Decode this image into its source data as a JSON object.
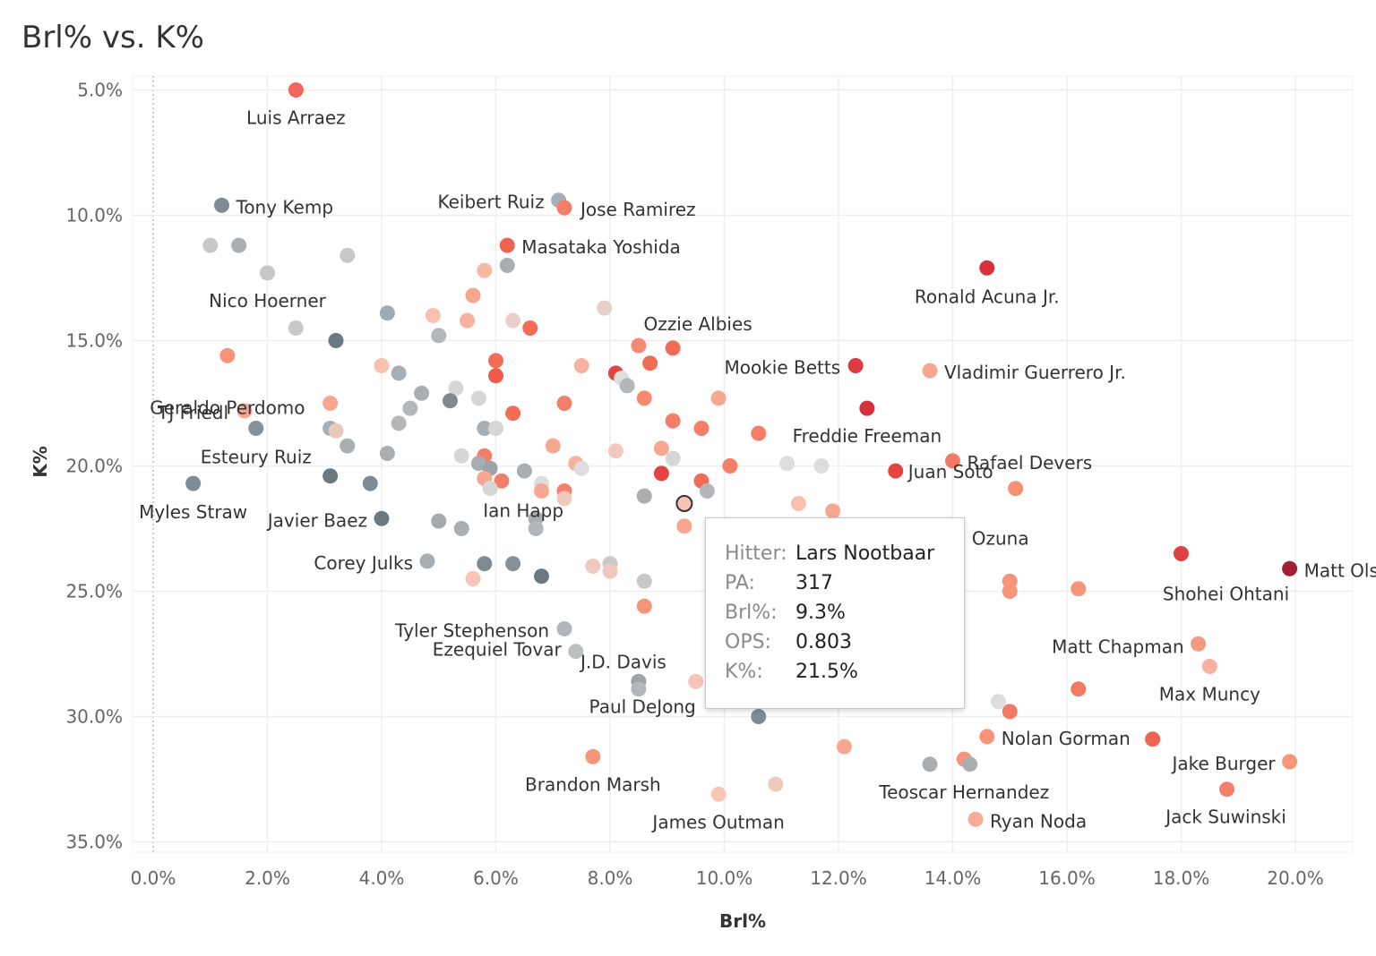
{
  "title": "Brl% vs. K%",
  "chart_data": {
    "type": "scatter",
    "title": "Brl% vs. K%",
    "xlabel": "Brl%",
    "ylabel": "K%",
    "xlim": [
      -0.3,
      20.9
    ],
    "ylim": [
      4.5,
      35.9
    ],
    "y_inverted": true,
    "x_ticks": [
      0,
      2,
      4,
      6,
      8,
      10,
      12,
      14,
      16,
      18,
      20
    ],
    "x_tick_labels": [
      "0.0%",
      "2.0%",
      "4.0%",
      "6.0%",
      "8.0%",
      "10.0%",
      "12.0%",
      "14.0%",
      "16.0%",
      "18.0%",
      "20.0%"
    ],
    "y_ticks": [
      5,
      10,
      15,
      20,
      25,
      30,
      35
    ],
    "y_tick_labels": [
      "5.0%",
      "10.0%",
      "15.0%",
      "20.0%",
      "25.0%",
      "30.0%",
      "35.0%"
    ],
    "points": [
      {
        "name": "Luis Arraez",
        "x": 2.5,
        "y": 5.0,
        "color": "#f0665a"
      },
      {
        "name": "Tony Kemp",
        "x": 1.2,
        "y": 9.6,
        "color": "#7f8b94"
      },
      {
        "name": "Keibert Ruiz",
        "x": 7.1,
        "y": 9.4,
        "color": "#a9aeb2"
      },
      {
        "name": "Jose Ramirez",
        "x": 7.2,
        "y": 9.7,
        "color": "#f47f69"
      },
      {
        "name": "Masataka Yoshida",
        "x": 6.2,
        "y": 11.2,
        "color": "#ee6450"
      },
      {
        "name": "Ronald Acuna Jr.",
        "x": 14.6,
        "y": 12.1,
        "color": "#d7313c"
      },
      {
        "name": "Nico Hoerner",
        "x": 2.0,
        "y": 12.3,
        "color": "#c7c7c7"
      },
      {
        "name": "Ozzie Albies",
        "x": 9.1,
        "y": 15.3,
        "color": "#f26c56"
      },
      {
        "name": "Mookie Betts",
        "x": 12.3,
        "y": 16.0,
        "color": "#dc3b40"
      },
      {
        "name": "Vladimir Guerrero Jr.",
        "x": 13.6,
        "y": 16.2,
        "color": "#f7a78f"
      },
      {
        "name": "Geraldo Perdomo",
        "x": 1.3,
        "y": 15.6,
        "color": "#f7937a"
      },
      {
        "name": "TJ Friedl",
        "x": 1.6,
        "y": 17.8,
        "color": "#f7a78f"
      },
      {
        "name": "Freddie Freeman",
        "x": 12.5,
        "y": 17.7,
        "color": "#d5303c"
      },
      {
        "name": "Esteury Ruiz",
        "x": 1.8,
        "y": 18.5,
        "color": "#879198"
      },
      {
        "name": "Rafael Devers",
        "x": 14.0,
        "y": 19.8,
        "color": "#f27a63"
      },
      {
        "name": "Myles Straw",
        "x": 0.7,
        "y": 20.7,
        "color": "#7f8b94"
      },
      {
        "name": "Juan Soto",
        "x": 13.0,
        "y": 20.2,
        "color": "#e2443f"
      },
      {
        "name": "Javier Baez",
        "x": 4.0,
        "y": 22.1,
        "color": "#6b7880"
      },
      {
        "name": "Ian Happ",
        "x": 6.7,
        "y": 22.1,
        "color": "#a9aeb2"
      },
      {
        "name": "Marcell Ozuna",
        "x": 15.1,
        "y": 20.9,
        "color": "#f6906f"
      },
      {
        "name": "Corey Julks",
        "x": 4.8,
        "y": 23.8,
        "color": "#a9aeb2"
      },
      {
        "name": "Lars Nootbaar",
        "x": 9.3,
        "y": 21.5,
        "color": "#f9c3b2"
      },
      {
        "name": "Shohei Ohtani",
        "x": 18.0,
        "y": 23.5,
        "color": "#de3f41"
      },
      {
        "name": "Matt Olson",
        "x": 19.9,
        "y": 24.1,
        "color": "#a51c35"
      },
      {
        "name": "Tyler Stephenson",
        "x": 7.2,
        "y": 26.5,
        "color": "#b3b7ba"
      },
      {
        "name": "Matt Chapman",
        "x": 18.3,
        "y": 27.1,
        "color": "#f49a80"
      },
      {
        "name": "J.D. Davis",
        "x": 8.5,
        "y": 28.6,
        "color": "#9ba3a9"
      },
      {
        "name": "Ezequiel Tovar",
        "x": 7.4,
        "y": 27.4,
        "color": "#bcc0c3"
      },
      {
        "name": "Max Muncy",
        "x": 18.5,
        "y": 28.0,
        "color": "#f7b19e"
      },
      {
        "name": "Paul DeJong",
        "x": 10.6,
        "y": 30.0,
        "color": "#7f8b94"
      },
      {
        "name": "Nolan Gorman",
        "x": 14.6,
        "y": 30.8,
        "color": "#f6957a"
      },
      {
        "name": "Jake Burger",
        "x": 19.9,
        "y": 31.8,
        "color": "#f6957a"
      },
      {
        "name": "Brandon Marsh",
        "x": 7.7,
        "y": 31.6,
        "color": "#f6957a"
      },
      {
        "name": "Teoscar Hernandez",
        "x": 14.2,
        "y": 31.7,
        "color": "#f6957a"
      },
      {
        "name": "Jack Suwinski",
        "x": 18.8,
        "y": 32.9,
        "color": "#f47f69"
      },
      {
        "name": "James Outman",
        "x": 9.9,
        "y": 33.1,
        "color": "#f7c6b8"
      },
      {
        "name": "Ryan Noda",
        "x": 14.4,
        "y": 34.1,
        "color": "#f8ab95"
      },
      {
        "name": "",
        "x": 1.0,
        "y": 11.2,
        "color": "#c8c8c8"
      },
      {
        "name": "",
        "x": 1.5,
        "y": 11.2,
        "color": "#a9aeb2"
      },
      {
        "name": "",
        "x": 3.4,
        "y": 11.6,
        "color": "#c8c8c8"
      },
      {
        "name": "",
        "x": 6.2,
        "y": 12.0,
        "color": "#a9aeb2"
      },
      {
        "name": "",
        "x": 5.8,
        "y": 12.2,
        "color": "#f7b8a6"
      },
      {
        "name": "",
        "x": 5.6,
        "y": 13.2,
        "color": "#f7a78f"
      },
      {
        "name": "",
        "x": 4.1,
        "y": 13.9,
        "color": "#a3a9ad"
      },
      {
        "name": "",
        "x": 4.9,
        "y": 14.0,
        "color": "#f9c0af"
      },
      {
        "name": "",
        "x": 7.9,
        "y": 13.7,
        "color": "#e8d0c9"
      },
      {
        "name": "",
        "x": 6.3,
        "y": 14.2,
        "color": "#e8d0c9"
      },
      {
        "name": "",
        "x": 5.5,
        "y": 14.2,
        "color": "#f7b19e"
      },
      {
        "name": "",
        "x": 2.5,
        "y": 14.5,
        "color": "#c8c8c8"
      },
      {
        "name": "",
        "x": 6.6,
        "y": 14.5,
        "color": "#f26c56"
      },
      {
        "name": "",
        "x": 5.0,
        "y": 14.8,
        "color": "#b3b7ba"
      },
      {
        "name": "",
        "x": 3.2,
        "y": 15.0,
        "color": "#6b7880"
      },
      {
        "name": "",
        "x": 8.5,
        "y": 15.2,
        "color": "#f58a70"
      },
      {
        "name": "",
        "x": 6.0,
        "y": 15.8,
        "color": "#f26c56"
      },
      {
        "name": "",
        "x": 8.7,
        "y": 15.9,
        "color": "#f26c56"
      },
      {
        "name": "",
        "x": 4.0,
        "y": 16.0,
        "color": "#f9c0af"
      },
      {
        "name": "",
        "x": 7.5,
        "y": 16.0,
        "color": "#f7b19e"
      },
      {
        "name": "",
        "x": 4.3,
        "y": 16.3,
        "color": "#a9aeb2"
      },
      {
        "name": "",
        "x": 6.0,
        "y": 16.4,
        "color": "#ee5b4c"
      },
      {
        "name": "",
        "x": 8.1,
        "y": 16.3,
        "color": "#e2443f"
      },
      {
        "name": "",
        "x": 8.2,
        "y": 16.5,
        "color": "#dddddd"
      },
      {
        "name": "",
        "x": 8.3,
        "y": 16.8,
        "color": "#b3b7ba"
      },
      {
        "name": "",
        "x": 5.3,
        "y": 16.9,
        "color": "#d6d6d6"
      },
      {
        "name": "",
        "x": 4.7,
        "y": 17.1,
        "color": "#a9aeb2"
      },
      {
        "name": "",
        "x": 5.2,
        "y": 17.4,
        "color": "#7f8b94"
      },
      {
        "name": "",
        "x": 5.7,
        "y": 17.3,
        "color": "#d6d6d6"
      },
      {
        "name": "",
        "x": 8.6,
        "y": 17.3,
        "color": "#f58a70"
      },
      {
        "name": "",
        "x": 9.9,
        "y": 17.3,
        "color": "#f7a78f"
      },
      {
        "name": "",
        "x": 3.1,
        "y": 17.5,
        "color": "#f7a78f"
      },
      {
        "name": "",
        "x": 7.2,
        "y": 17.5,
        "color": "#f47f69"
      },
      {
        "name": "",
        "x": 4.5,
        "y": 17.7,
        "color": "#b3b7ba"
      },
      {
        "name": "",
        "x": 6.3,
        "y": 17.9,
        "color": "#f26c56"
      },
      {
        "name": "",
        "x": 9.1,
        "y": 18.2,
        "color": "#f47f69"
      },
      {
        "name": "",
        "x": 4.3,
        "y": 18.3,
        "color": "#b3b7ba"
      },
      {
        "name": "",
        "x": 3.1,
        "y": 18.5,
        "color": "#a9aeb2"
      },
      {
        "name": "",
        "x": 5.8,
        "y": 18.5,
        "color": "#a9aeb2"
      },
      {
        "name": "",
        "x": 6.0,
        "y": 18.5,
        "color": "#d6d6d6"
      },
      {
        "name": "",
        "x": 3.2,
        "y": 18.6,
        "color": "#e8c7bd"
      },
      {
        "name": "",
        "x": 9.6,
        "y": 18.5,
        "color": "#f47f69"
      },
      {
        "name": "",
        "x": 10.6,
        "y": 18.7,
        "color": "#f47f69"
      },
      {
        "name": "",
        "x": 7.0,
        "y": 19.2,
        "color": "#f7a78f"
      },
      {
        "name": "",
        "x": 3.4,
        "y": 19.2,
        "color": "#a9aeb2"
      },
      {
        "name": "",
        "x": 4.1,
        "y": 19.5,
        "color": "#a9aeb2"
      },
      {
        "name": "",
        "x": 8.9,
        "y": 19.3,
        "color": "#f7a78f"
      },
      {
        "name": "",
        "x": 5.4,
        "y": 19.6,
        "color": "#d6d6d6"
      },
      {
        "name": "",
        "x": 5.8,
        "y": 19.6,
        "color": "#f47f69"
      },
      {
        "name": "",
        "x": 8.1,
        "y": 19.4,
        "color": "#efc9be"
      },
      {
        "name": "",
        "x": 9.1,
        "y": 19.7,
        "color": "#d6d6d6"
      },
      {
        "name": "",
        "x": 5.7,
        "y": 19.9,
        "color": "#a9aeb2"
      },
      {
        "name": "",
        "x": 7.4,
        "y": 19.9,
        "color": "#f7b19e"
      },
      {
        "name": "",
        "x": 7.5,
        "y": 20.1,
        "color": "#dddddd"
      },
      {
        "name": "",
        "x": 10.1,
        "y": 20.0,
        "color": "#f47f69"
      },
      {
        "name": "",
        "x": 11.1,
        "y": 19.9,
        "color": "#dddddd"
      },
      {
        "name": "",
        "x": 11.7,
        "y": 20.0,
        "color": "#dddddd"
      },
      {
        "name": "",
        "x": 5.9,
        "y": 20.1,
        "color": "#9ba3a9"
      },
      {
        "name": "",
        "x": 6.5,
        "y": 20.2,
        "color": "#a9aeb2"
      },
      {
        "name": "",
        "x": 8.9,
        "y": 20.3,
        "color": "#e2443f"
      },
      {
        "name": "",
        "x": 3.1,
        "y": 20.4,
        "color": "#6b7880"
      },
      {
        "name": "",
        "x": 5.8,
        "y": 20.5,
        "color": "#f7a78f"
      },
      {
        "name": "",
        "x": 6.1,
        "y": 20.6,
        "color": "#f47f69"
      },
      {
        "name": "",
        "x": 6.8,
        "y": 20.7,
        "color": "#dddddd"
      },
      {
        "name": "",
        "x": 9.6,
        "y": 20.6,
        "color": "#f26c56"
      },
      {
        "name": "",
        "x": 3.8,
        "y": 20.7,
        "color": "#7f8b94"
      },
      {
        "name": "",
        "x": 5.9,
        "y": 20.9,
        "color": "#d6d6d6"
      },
      {
        "name": "",
        "x": 6.8,
        "y": 21.0,
        "color": "#f7a78f"
      },
      {
        "name": "",
        "x": 7.2,
        "y": 21.0,
        "color": "#f47f69"
      },
      {
        "name": "",
        "x": 9.7,
        "y": 21.0,
        "color": "#b3b7ba"
      },
      {
        "name": "",
        "x": 7.2,
        "y": 21.3,
        "color": "#efc9be"
      },
      {
        "name": "",
        "x": 8.6,
        "y": 21.2,
        "color": "#a9aeb2"
      },
      {
        "name": "",
        "x": 11.3,
        "y": 21.5,
        "color": "#f9c0af"
      },
      {
        "name": "",
        "x": 11.9,
        "y": 21.8,
        "color": "#f7a78f"
      },
      {
        "name": "",
        "x": 5.0,
        "y": 22.2,
        "color": "#a3a9ad"
      },
      {
        "name": "",
        "x": 6.7,
        "y": 22.5,
        "color": "#b3b7ba"
      },
      {
        "name": "",
        "x": 5.4,
        "y": 22.5,
        "color": "#a9aeb2"
      },
      {
        "name": "",
        "x": 9.3,
        "y": 22.4,
        "color": "#f7a78f"
      },
      {
        "name": "",
        "x": 9.9,
        "y": 22.6,
        "color": "#a9aeb2"
      },
      {
        "name": "",
        "x": 8.0,
        "y": 23.9,
        "color": "#c8c8c8"
      },
      {
        "name": "",
        "x": 5.8,
        "y": 23.9,
        "color": "#7f8b94"
      },
      {
        "name": "",
        "x": 6.3,
        "y": 23.9,
        "color": "#879198"
      },
      {
        "name": "",
        "x": 7.7,
        "y": 24.0,
        "color": "#efc9be"
      },
      {
        "name": "",
        "x": 8.0,
        "y": 24.2,
        "color": "#efc9be"
      },
      {
        "name": "",
        "x": 6.8,
        "y": 24.4,
        "color": "#6b7880"
      },
      {
        "name": "",
        "x": 5.6,
        "y": 24.5,
        "color": "#f7c6b8"
      },
      {
        "name": "",
        "x": 8.6,
        "y": 24.6,
        "color": "#c8c8c8"
      },
      {
        "name": "",
        "x": 15.0,
        "y": 24.6,
        "color": "#f6957a"
      },
      {
        "name": "",
        "x": 15.0,
        "y": 25.0,
        "color": "#f6957a"
      },
      {
        "name": "",
        "x": 16.2,
        "y": 24.9,
        "color": "#f6957a"
      },
      {
        "name": "",
        "x": 8.6,
        "y": 25.6,
        "color": "#f6957a"
      },
      {
        "name": "",
        "x": 9.5,
        "y": 28.6,
        "color": "#f7c6b8"
      },
      {
        "name": "",
        "x": 8.5,
        "y": 28.9,
        "color": "#b3b7ba"
      },
      {
        "name": "",
        "x": 16.2,
        "y": 28.9,
        "color": "#f27a63"
      },
      {
        "name": "",
        "x": 14.8,
        "y": 29.4,
        "color": "#dddddd"
      },
      {
        "name": "",
        "x": 15.0,
        "y": 29.8,
        "color": "#f27a63"
      },
      {
        "name": "",
        "x": 17.5,
        "y": 30.9,
        "color": "#ee6450"
      },
      {
        "name": "",
        "x": 12.1,
        "y": 31.2,
        "color": "#f7a78f"
      },
      {
        "name": "",
        "x": 13.6,
        "y": 31.9,
        "color": "#a9aeb2"
      },
      {
        "name": "",
        "x": 14.3,
        "y": 31.9,
        "color": "#a9aeb2"
      },
      {
        "name": "",
        "x": 10.9,
        "y": 32.7,
        "color": "#efc9be"
      }
    ]
  },
  "tooltip": {
    "hitter_label": "Hitter:",
    "hitter": "Lars Nootbaar",
    "pa_label": "PA:",
    "pa": "317",
    "brl_label": "Brl%:",
    "brl": "9.3%",
    "ops_label": "OPS:",
    "ops": "0.803",
    "k_label": "K%:",
    "k": "21.5%"
  }
}
